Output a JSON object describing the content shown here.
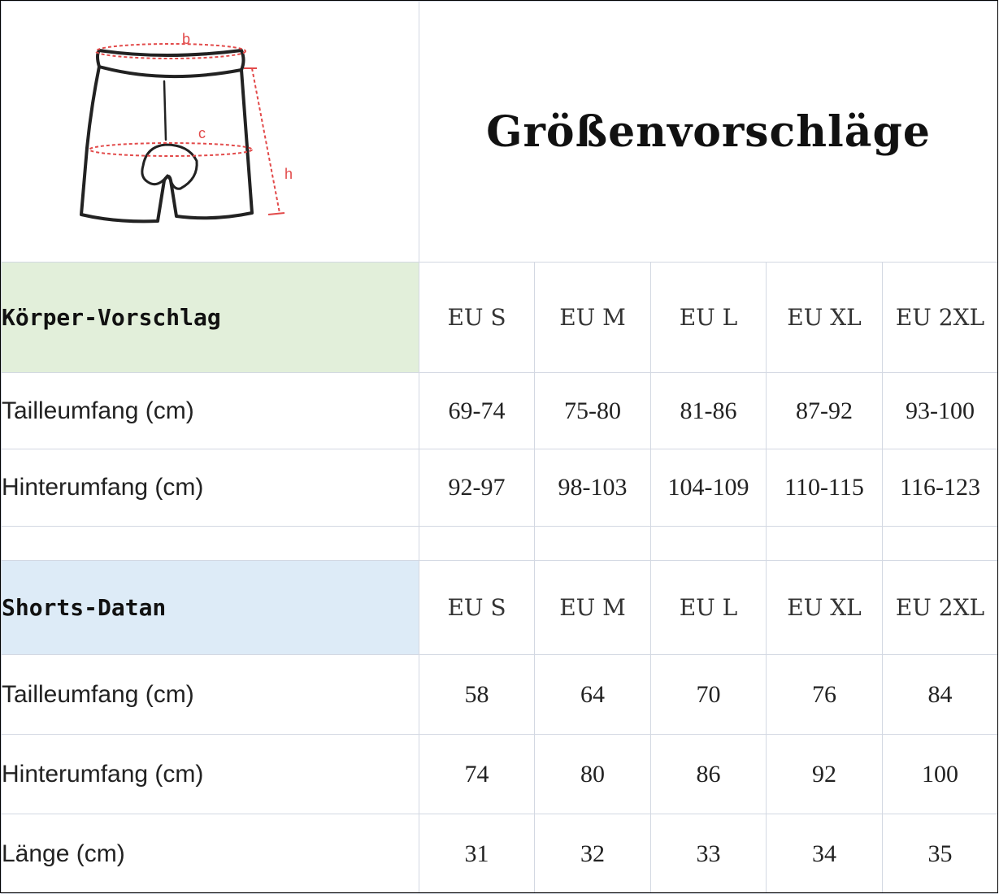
{
  "title": "Größenvorschläge",
  "diagram": {
    "labels": {
      "b": "b",
      "c": "c",
      "h": "h"
    },
    "icon": "cycling-shorts-icon",
    "accent_color": "#e24a4a"
  },
  "sizes": [
    "EU  S",
    "EU  M",
    "EU  L",
    "EU  XL",
    "EU  2XL"
  ],
  "body_section": {
    "heading": "Körper-Vorschlag",
    "color": "#e2efda",
    "rows": [
      {
        "label": "Tailleumfang (cm)",
        "values": [
          "69-74",
          "75-80",
          "81-86",
          "87-92",
          "93-100"
        ]
      },
      {
        "label": "Hinterumfang (cm)",
        "values": [
          "92-97",
          "98-103",
          "104-109",
          "110-115",
          "116-123"
        ]
      }
    ]
  },
  "shorts_section": {
    "heading": "Shorts-Datan",
    "color": "#ddebf7",
    "rows": [
      {
        "label": "Tailleumfang (cm)",
        "values": [
          "58",
          "64",
          "70",
          "76",
          "84"
        ]
      },
      {
        "label": "Hinterumfang (cm)",
        "values": [
          "74",
          "80",
          "86",
          "92",
          "100"
        ]
      },
      {
        "label": "Länge (cm)",
        "values": [
          "31",
          "32",
          "33",
          "34",
          "35"
        ]
      }
    ]
  }
}
